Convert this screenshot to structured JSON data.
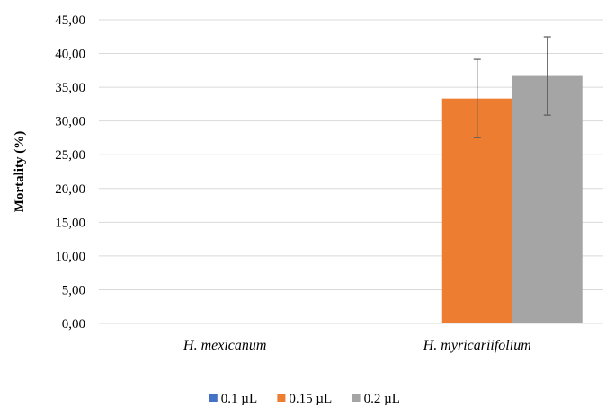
{
  "chart_data": {
    "type": "bar",
    "title": "",
    "xlabel": "",
    "ylabel": "Mortality (%)",
    "ylim": [
      0,
      45
    ],
    "yticks": [
      "0,00",
      "5,00",
      "10,00",
      "15,00",
      "20,00",
      "25,00",
      "30,00",
      "35,00",
      "40,00",
      "45,00"
    ],
    "grid": true,
    "legend_position": "bottom",
    "categories": [
      "H. mexicanum",
      "H. myricariifolium"
    ],
    "series": [
      {
        "name": "0.1 µL",
        "color": "#4472C4",
        "values": [
          0,
          0
        ],
        "error": [
          0,
          0
        ]
      },
      {
        "name": "0.15 µL",
        "color": "#ED7D31",
        "values": [
          0,
          33.33
        ],
        "error": [
          0,
          5.8
        ]
      },
      {
        "name": "0.2 µL",
        "color": "#A5A5A5",
        "values": [
          0,
          36.67
        ],
        "error": [
          0,
          5.8
        ]
      }
    ]
  }
}
